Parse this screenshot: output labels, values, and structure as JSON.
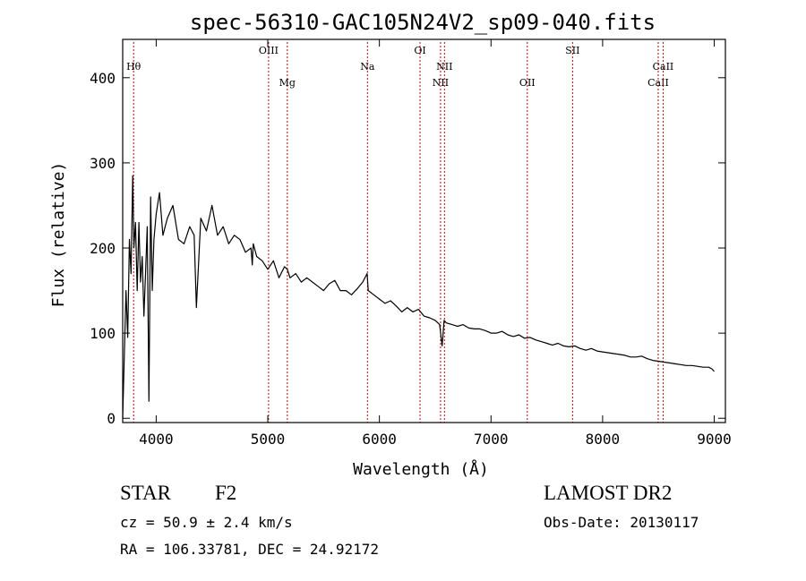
{
  "chart_data": {
    "type": "line",
    "title": "spec-56310-GAC105N24V2_sp09-040.fits",
    "xlabel": "Wavelength (Å)",
    "ylabel": "Flux (relative)",
    "xlim": [
      3700,
      9100
    ],
    "ylim": [
      -5,
      445
    ],
    "xticks": [
      4000,
      5000,
      6000,
      7000,
      8000,
      9000
    ],
    "yticks": [
      0,
      100,
      200,
      300,
      400
    ],
    "grid": false,
    "line_color": "#000000",
    "marker_color": "#cc0000",
    "spectrum": {
      "x": [
        3700,
        3730,
        3745,
        3760,
        3775,
        3790,
        3800,
        3815,
        3830,
        3845,
        3860,
        3875,
        3890,
        3905,
        3920,
        3935,
        3950,
        3965,
        3980,
        4000,
        4030,
        4060,
        4100,
        4150,
        4200,
        4250,
        4300,
        4340,
        4360,
        4400,
        4450,
        4500,
        4550,
        4600,
        4650,
        4700,
        4750,
        4800,
        4850,
        4861,
        4870,
        4900,
        4950,
        5000,
        5050,
        5100,
        5150,
        5175,
        5200,
        5250,
        5300,
        5350,
        5400,
        5450,
        5500,
        5550,
        5600,
        5650,
        5700,
        5750,
        5800,
        5850,
        5890,
        5900,
        5950,
        6000,
        6050,
        6100,
        6150,
        6200,
        6250,
        6300,
        6350,
        6400,
        6450,
        6500,
        6540,
        6562,
        6580,
        6600,
        6650,
        6700,
        6750,
        6800,
        6850,
        6900,
        6950,
        7000,
        7050,
        7100,
        7150,
        7200,
        7250,
        7300,
        7350,
        7400,
        7450,
        7500,
        7550,
        7600,
        7650,
        7700,
        7750,
        7800,
        7850,
        7900,
        7950,
        8000,
        8050,
        8100,
        8150,
        8200,
        8250,
        8300,
        8350,
        8400,
        8450,
        8500,
        8550,
        8600,
        8650,
        8700,
        8750,
        8800,
        8850,
        8900,
        8950,
        8980,
        9000
      ],
      "y": [
        0,
        150,
        95,
        210,
        170,
        285,
        200,
        230,
        150,
        230,
        160,
        190,
        120,
        170,
        225,
        20,
        260,
        150,
        210,
        240,
        265,
        215,
        235,
        250,
        210,
        205,
        225,
        215,
        130,
        235,
        220,
        250,
        215,
        225,
        205,
        215,
        210,
        195,
        200,
        180,
        205,
        190,
        185,
        175,
        185,
        165,
        178,
        175,
        165,
        170,
        160,
        165,
        160,
        155,
        150,
        158,
        162,
        150,
        150,
        145,
        152,
        160,
        170,
        150,
        145,
        140,
        135,
        138,
        132,
        125,
        130,
        125,
        128,
        120,
        118,
        115,
        110,
        85,
        115,
        112,
        110,
        108,
        110,
        106,
        105,
        105,
        103,
        100,
        100,
        102,
        98,
        96,
        98,
        94,
        95,
        92,
        90,
        88,
        86,
        88,
        85,
        84,
        85,
        82,
        80,
        82,
        79,
        78,
        77,
        76,
        75,
        74,
        72,
        72,
        73,
        70,
        68,
        67,
        66,
        65,
        64,
        63,
        62,
        62,
        61,
        60,
        60,
        58,
        55
      ]
    },
    "lines": [
      {
        "name": "Hθ",
        "x": 3798,
        "row": 1
      },
      {
        "name": "OIII",
        "x": 5007,
        "row": 0
      },
      {
        "name": "Mg",
        "x": 5175,
        "row": 2
      },
      {
        "name": "Na",
        "x": 5893,
        "row": 1
      },
      {
        "name": "OI",
        "x": 6364,
        "row": 0
      },
      {
        "name": "NII",
        "x": 6548,
        "row": 2
      },
      {
        "name": "NII",
        "x": 6583,
        "row": 1
      },
      {
        "name": "OII",
        "x": 7325,
        "row": 2
      },
      {
        "name": "SII",
        "x": 7731,
        "row": 0
      },
      {
        "name": "CaII",
        "x": 8498,
        "row": 2
      },
      {
        "name": "CaII",
        "x": 8542,
        "row": 1
      }
    ]
  },
  "info": {
    "object_class": "STAR",
    "subclass": "F2",
    "survey": "LAMOST DR2",
    "redshift": "cz = 50.9 ± 2.4 km/s",
    "obs_date": "Obs-Date: 20130117",
    "coords": "RA = 106.33781, DEC =  24.92172"
  }
}
